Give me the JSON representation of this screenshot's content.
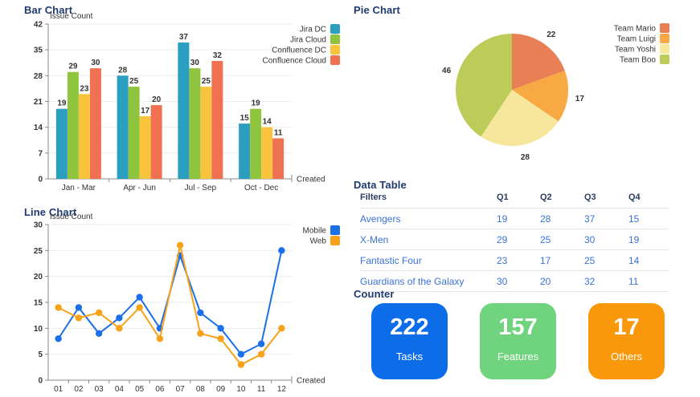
{
  "sections": {
    "bar_title": "Bar Chart",
    "pie_title": "Pie Chart",
    "line_title": "Line Chart",
    "table_title": "Data Table",
    "counter_title": "Counter"
  },
  "chart_data": [
    {
      "id": "bar",
      "type": "bar",
      "title": "Bar Chart",
      "ylabel": "Issue Count",
      "xlabel": "Created",
      "ylim": [
        0,
        42
      ],
      "yticks": [
        0,
        7,
        14,
        21,
        28,
        35,
        42
      ],
      "grid": true,
      "legend_position": "top-right",
      "categories": [
        "Jan - Mar",
        "Apr - Jun",
        "Jul - Sep",
        "Oct - Dec"
      ],
      "series": [
        {
          "name": "Jira DC",
          "color": "#2b9fc0",
          "values": [
            19,
            28,
            37,
            15
          ]
        },
        {
          "name": "Jira Cloud",
          "color": "#8fc43e",
          "values": [
            29,
            25,
            30,
            19
          ]
        },
        {
          "name": "Confluence DC",
          "color": "#f8c43c",
          "values": [
            23,
            17,
            25,
            14
          ]
        },
        {
          "name": "Confluence Cloud",
          "color": "#ef7152",
          "values": [
            30,
            20,
            32,
            11
          ]
        }
      ]
    },
    {
      "id": "pie",
      "type": "pie",
      "title": "Pie Chart",
      "legend_position": "top-right",
      "labels": [
        "Team Mario",
        "Team Luigi",
        "Team Yoshi",
        "Team Boo"
      ],
      "values": [
        22,
        17,
        28,
        46
      ],
      "colors": [
        "#e97f55",
        "#f9a943",
        "#f7e79d",
        "#bdcb58"
      ]
    },
    {
      "id": "line",
      "type": "line",
      "title": "Line Chart",
      "ylabel": "Issue Count",
      "xlabel": "Created",
      "ylim": [
        0,
        30
      ],
      "yticks": [
        0,
        5,
        10,
        15,
        20,
        25,
        30
      ],
      "grid": true,
      "legend_position": "top-right",
      "x": [
        "01",
        "02",
        "03",
        "04",
        "05",
        "06",
        "07",
        "08",
        "09",
        "10",
        "11",
        "12"
      ],
      "series": [
        {
          "name": "Mobile",
          "color": "#1b6fe8",
          "values": [
            8,
            14,
            9,
            12,
            16,
            10,
            24,
            13,
            10,
            5,
            7,
            25
          ]
        },
        {
          "name": "Web",
          "color": "#f7a219",
          "values": [
            14,
            12,
            13,
            10,
            14,
            8,
            26,
            9,
            8,
            3,
            5,
            10
          ]
        }
      ]
    }
  ],
  "table": {
    "headers": [
      "Filters",
      "Q1",
      "Q2",
      "Q3",
      "Q4"
    ],
    "rows": [
      {
        "label": "Avengers",
        "values": [
          19,
          28,
          37,
          15
        ]
      },
      {
        "label": "X-Men",
        "values": [
          29,
          25,
          30,
          19
        ]
      },
      {
        "label": "Fantastic Four",
        "values": [
          23,
          17,
          25,
          14
        ]
      },
      {
        "label": "Guardians of the Galaxy",
        "values": [
          30,
          20,
          32,
          11
        ]
      }
    ]
  },
  "counters": [
    {
      "value": "222",
      "label": "Tasks",
      "color": "#0d6ce8"
    },
    {
      "value": "157",
      "label": "Features",
      "color": "#6fd47d"
    },
    {
      "value": "17",
      "label": "Others",
      "color": "#f8980a"
    }
  ],
  "colors": {
    "heading": "#1e3a6e",
    "link": "#3a72d8",
    "axis_text": "#333333",
    "axis_line": "#8a8a8a",
    "grid_line": "#ebebeb"
  }
}
